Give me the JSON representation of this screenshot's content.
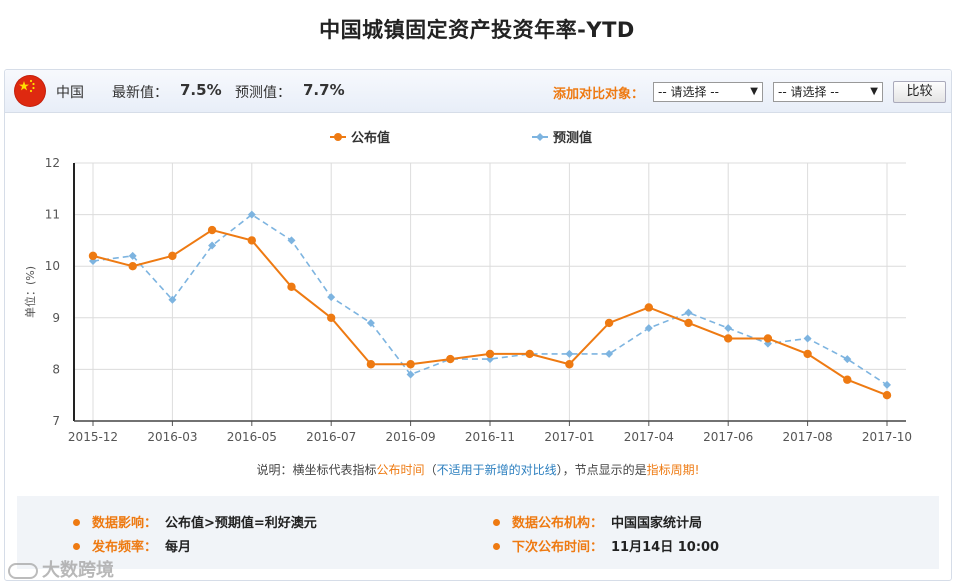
{
  "page": {
    "title": "中国城镇固定资产投资年率-YTD"
  },
  "header": {
    "country": "中国",
    "latest_label": "最新值：",
    "latest_value": "7.5%",
    "forecast_label": "预测值：",
    "forecast_value": "7.7%",
    "compare_label": "添加对比对象：",
    "select1": "-- 请选择 --",
    "select2": "-- 请选择 --",
    "compare_button": "比较",
    "flag_icon": "china-flag-icon"
  },
  "colors": {
    "published": "#ee7a12",
    "forecast": "#7db4e0",
    "accent": "#ee7a12"
  },
  "chart_data": {
    "type": "line",
    "ylabel": "单位：(%)",
    "ylim": [
      7,
      12
    ],
    "yticks": [
      7,
      8,
      9,
      10,
      11,
      12
    ],
    "x": [
      "2015-12",
      "2016-02",
      "2016-03",
      "2016-04",
      "2016-05",
      "2016-06",
      "2016-07",
      "2016-08",
      "2016-09",
      "2016-10",
      "2016-11",
      "2016-12",
      "2017-01",
      "2017-03",
      "2017-04",
      "2017-05",
      "2017-06",
      "2017-07",
      "2017-08",
      "2017-09",
      "2017-10"
    ],
    "xticks": [
      "2015-12",
      "2016-03",
      "2016-05",
      "2016-07",
      "2016-09",
      "2016-11",
      "2017-01",
      "2017-04",
      "2017-06",
      "2017-08",
      "2017-10"
    ],
    "legend_position": "top-center",
    "grid": true,
    "series": [
      {
        "name": "公布值",
        "style": "solid-circle",
        "values": [
          10.2,
          10.0,
          10.2,
          10.7,
          10.5,
          9.6,
          9.0,
          8.1,
          8.1,
          8.2,
          8.3,
          8.3,
          8.1,
          8.9,
          9.2,
          8.9,
          8.6,
          8.6,
          8.3,
          7.8,
          7.5
        ]
      },
      {
        "name": "预测值",
        "style": "dashed-diamond",
        "values": [
          10.1,
          10.2,
          9.35,
          10.4,
          11.0,
          10.5,
          9.4,
          8.9,
          7.9,
          8.2,
          8.2,
          8.3,
          8.3,
          8.3,
          8.8,
          9.1,
          8.8,
          8.5,
          8.6,
          8.2,
          7.7
        ]
      }
    ]
  },
  "note": {
    "prefix": "说明：横坐标代表指标",
    "publish_time": "公布时间",
    "paren_open": "（",
    "not_applicable": "不适用于新增的对比线",
    "paren_close": "）",
    "middle": "，节点显示的是",
    "period": "指标周期",
    "suffix": "!"
  },
  "info": {
    "impact_label": "数据影响：",
    "impact_value": "公布值>预期值=利好澳元",
    "agency_label": "数据公布机构：",
    "agency_value": "中国国家统计局",
    "frequency_label": "发布频率：",
    "frequency_value": "每月",
    "next_label": "下次公布时间：",
    "next_value": "11月14日 10:00"
  },
  "watermark": {
    "text": "大数跨境"
  }
}
